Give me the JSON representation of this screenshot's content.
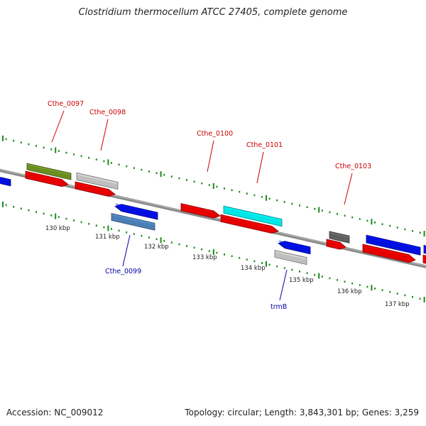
{
  "title": "Clostridium thermocellum ATCC 27405, complete genome",
  "footer": {
    "accession": "Accession: NC_009012",
    "topology": "Topology: circular; Length: 3,843,301 bp; Genes: 3,259"
  },
  "colors": {
    "backbone": "#8a8a8a",
    "tick": "#1a8a1a",
    "forward_label": "#cc0000",
    "reverse_label": "#0000aa",
    "red": "#e60000",
    "blue": "#0010e0",
    "cyan": "#00e5e5",
    "olive": "#6b8e23",
    "grey": "#bfbfbf",
    "darkgrey": "#606060",
    "steelblue": "#4a7fb5"
  },
  "map": {
    "scale_labels": [
      "130 kbp",
      "131 kbp",
      "132 kbp",
      "133 kbp",
      "134 kbp",
      "135 kbp",
      "136 kbp",
      "137 kbp"
    ],
    "gene_labels": [
      {
        "text": "Cthe_0097",
        "strand": "forward"
      },
      {
        "text": "Cthe_0098",
        "strand": "forward"
      },
      {
        "text": "Cthe_0100",
        "strand": "forward"
      },
      {
        "text": "Cthe_0101",
        "strand": "forward"
      },
      {
        "text": "Cthe_0103",
        "strand": "forward"
      },
      {
        "text": "Cthe_0099",
        "strand": "reverse"
      },
      {
        "text": "trmB",
        "strand": "reverse"
      }
    ],
    "features": [
      {
        "name": "partial-blue-left",
        "color": "blue",
        "arrow": "left"
      },
      {
        "name": "cthe-0097-cog-olive",
        "color": "olive",
        "arrow": "none"
      },
      {
        "name": "cthe-0097-cds",
        "color": "red",
        "arrow": "right"
      },
      {
        "name": "cthe-0098-cog-grey",
        "color": "grey",
        "arrow": "none"
      },
      {
        "name": "cthe-0098-cds",
        "color": "red",
        "arrow": "right"
      },
      {
        "name": "cthe-0099-cds",
        "color": "blue",
        "arrow": "left"
      },
      {
        "name": "cthe-0099-cog-steelblue",
        "color": "steelblue",
        "arrow": "none"
      },
      {
        "name": "cthe-0100-cds",
        "color": "red",
        "arrow": "right"
      },
      {
        "name": "cthe-0101-cog-cyan",
        "color": "cyan",
        "arrow": "none"
      },
      {
        "name": "cthe-0101-cds",
        "color": "red",
        "arrow": "right"
      },
      {
        "name": "trmb-cds",
        "color": "blue",
        "arrow": "left"
      },
      {
        "name": "trmb-cog-grey",
        "color": "grey",
        "arrow": "none"
      },
      {
        "name": "cthe-0103-cog-darkgrey",
        "color": "darkgrey",
        "arrow": "none"
      },
      {
        "name": "cthe-0103-cds",
        "color": "red",
        "arrow": "right"
      },
      {
        "name": "blue-gene-right-1",
        "color": "blue",
        "arrow": "none"
      },
      {
        "name": "red-gene-right-1",
        "color": "red",
        "arrow": "right"
      },
      {
        "name": "blue-gene-right-2",
        "color": "blue",
        "arrow": "none"
      },
      {
        "name": "red-gene-right-2",
        "color": "red",
        "arrow": "none"
      }
    ]
  }
}
